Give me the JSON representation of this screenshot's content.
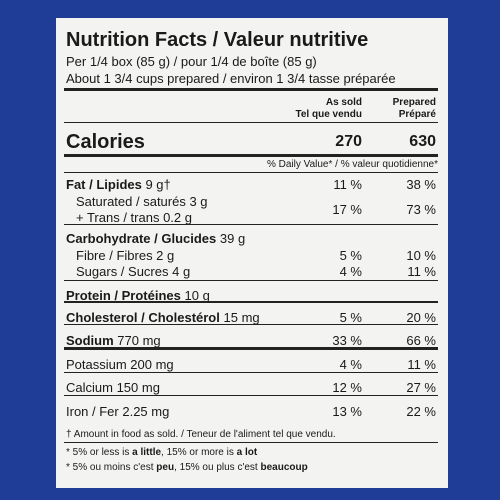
{
  "label": {
    "title": "Nutrition Facts / Valeur nutritive",
    "serving": "Per 1/4 box (85 g) / pour 1/4 de boîte (85 g)",
    "prepared_note": "About 1 3/4 cups prepared / environ 1 3/4 tasse préparée",
    "columns": [
      [
        "As sold",
        "Tel que vendu"
      ],
      [
        "Prepared",
        "Préparé"
      ]
    ],
    "calories": {
      "name": "Calories",
      "as_sold": "270",
      "prepared": "630"
    },
    "dv_header": "% Daily Value* / % valeur quotidienne*",
    "rows": [
      {
        "name": "Fat / Lipides",
        "amount": "9 g†",
        "as_sold": "11 %",
        "prepared": "38 %"
      },
      {
        "name": "Saturated / saturés 3 g",
        "amount": "+ Trans / trans 0.2 g",
        "as_sold": "17 %",
        "prepared": "73 %"
      },
      {
        "name": "Carbohydrate / Glucides",
        "amount": "39 g"
      },
      {
        "name": "Fibre / Fibres 2 g",
        "as_sold": "5 %",
        "prepared": "10 %"
      },
      {
        "name": "Sugars / Sucres 4 g",
        "as_sold": "4 %",
        "prepared": "11 %"
      },
      {
        "name": "Protein / Protéines",
        "amount": "10 g"
      },
      {
        "name": "Cholesterol / Cholestérol",
        "amount": "15 mg",
        "as_sold": "5 %",
        "prepared": "20 %"
      },
      {
        "name": "Sodium",
        "amount": "770 mg",
        "as_sold": "33 %",
        "prepared": "66 %"
      },
      {
        "name": "Potassium 200 mg",
        "as_sold": "4 %",
        "prepared": "11 %"
      },
      {
        "name": "Calcium 150 mg",
        "as_sold": "12 %",
        "prepared": "27 %"
      },
      {
        "name": "Iron / Fer 2.25 mg",
        "as_sold": "13 %",
        "prepared": "22 %"
      }
    ],
    "footnote_dagger": "† Amount in food as sold. / Teneur de l'aliment tel que vendu.",
    "footnote_en": [
      "* 5% or less is ",
      "a little",
      ", 15% or more is ",
      "a lot"
    ],
    "footnote_fr": [
      "* 5% ou moins c'est ",
      "peu",
      ", 15% ou plus c'est ",
      "beaucoup"
    ]
  }
}
